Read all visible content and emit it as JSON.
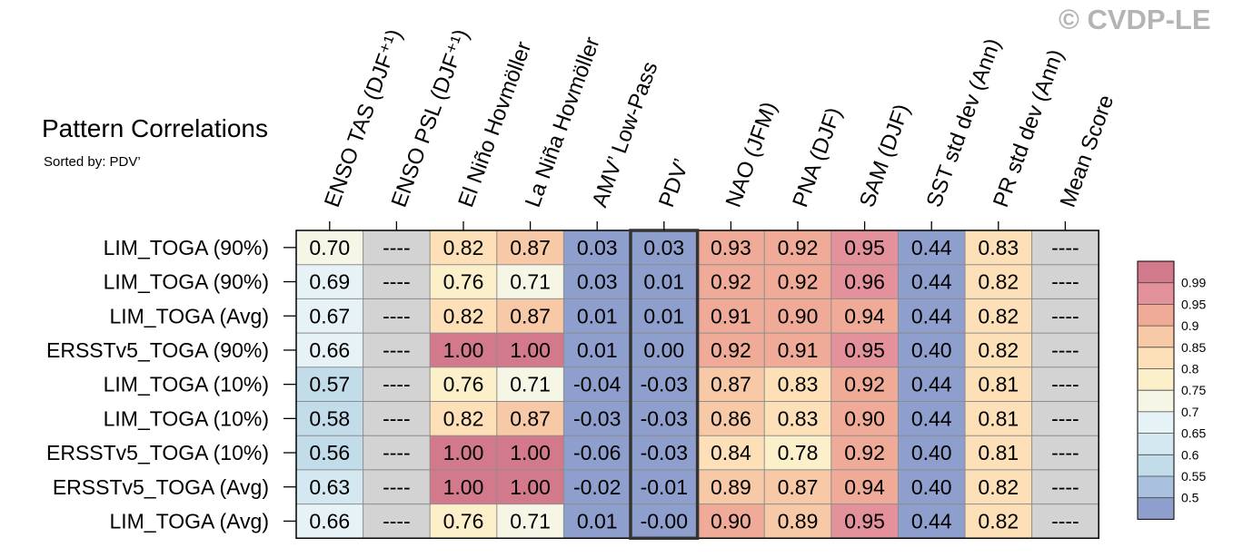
{
  "title": "Pattern Correlations",
  "subtitle": "Sorted by: PDV’",
  "copyright": "© CVDP-LE",
  "chart_data": {
    "type": "heatmap",
    "columns": [
      "ENSO TAS (DJF⁺¹)",
      "ENSO PSL (DJF⁺¹)",
      "El Niño Hovmöller",
      "La Niña Hovmöller",
      "AMV’ Low-Pass",
      "PDV’",
      "NAO (JFM)",
      "PNA (DJF)",
      "SAM (DJF)",
      "SST std dev (Ann)",
      "PR std dev (Ann)",
      "Mean Score"
    ],
    "highlighted_column": "PDV’",
    "rows": [
      "LIM_TOGA (90%)",
      "LIM_TOGA (90%)",
      "LIM_TOGA (Avg)",
      "ERSSTv5_TOGA (90%)",
      "LIM_TOGA (10%)",
      "LIM_TOGA (10%)",
      "ERSSTv5_TOGA (10%)",
      "ERSSTv5_TOGA (Avg)",
      "LIM_TOGA (Avg)"
    ],
    "cells": [
      [
        "0.70",
        "----",
        "0.82",
        "0.87",
        "0.03",
        "0.03",
        "0.93",
        "0.92",
        "0.95",
        "0.44",
        "0.83",
        "----"
      ],
      [
        "0.69",
        "----",
        "0.76",
        "0.71",
        "0.03",
        "0.01",
        "0.92",
        "0.92",
        "0.96",
        "0.44",
        "0.82",
        "----"
      ],
      [
        "0.67",
        "----",
        "0.82",
        "0.87",
        "0.01",
        "0.01",
        "0.91",
        "0.90",
        "0.94",
        "0.44",
        "0.82",
        "----"
      ],
      [
        "0.66",
        "----",
        "1.00",
        "1.00",
        "0.01",
        "0.00",
        "0.92",
        "0.91",
        "0.95",
        "0.40",
        "0.82",
        "----"
      ],
      [
        "0.57",
        "----",
        "0.76",
        "0.71",
        "-0.04",
        "-0.03",
        "0.87",
        "0.83",
        "0.92",
        "0.44",
        "0.81",
        "----"
      ],
      [
        "0.58",
        "----",
        "0.82",
        "0.87",
        "-0.03",
        "-0.03",
        "0.86",
        "0.83",
        "0.90",
        "0.44",
        "0.81",
        "----"
      ],
      [
        "0.56",
        "----",
        "1.00",
        "1.00",
        "-0.06",
        "-0.03",
        "0.84",
        "0.78",
        "0.92",
        "0.40",
        "0.81",
        "----"
      ],
      [
        "0.63",
        "----",
        "1.00",
        "1.00",
        "-0.02",
        "-0.01",
        "0.89",
        "0.87",
        "0.94",
        "0.40",
        "0.82",
        "----"
      ],
      [
        "0.66",
        "----",
        "0.76",
        "0.71",
        "0.01",
        "-0.00",
        "0.90",
        "0.89",
        "0.95",
        "0.44",
        "0.82",
        "----"
      ]
    ],
    "missing_label": "----",
    "colorbar": {
      "labels": [
        "0.99",
        "0.95",
        "0.9",
        "0.85",
        "0.8",
        "0.75",
        "0.7",
        "0.65",
        "0.6",
        "0.55",
        "0.5"
      ],
      "bin_edges": [
        0.5,
        0.55,
        0.6,
        0.65,
        0.7,
        0.75,
        0.8,
        0.85,
        0.9,
        0.95,
        0.99
      ],
      "colors": [
        "#8f9fcd",
        "#a9c1df",
        "#c3dcea",
        "#d3e8f1",
        "#e6f2f6",
        "#f5f6e5",
        "#fcf0ca",
        "#fde0b8",
        "#f8c9a7",
        "#f0ab98",
        "#e3919a",
        "#d27a8b"
      ],
      "missing_color": "#d3d3d3"
    }
  }
}
